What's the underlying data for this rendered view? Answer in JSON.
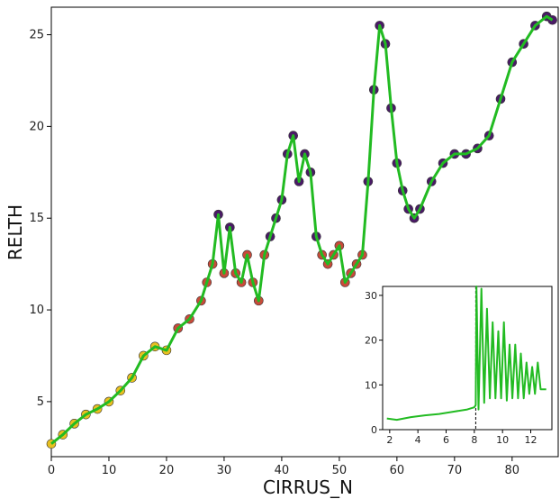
{
  "chart_data": [
    {
      "type": "scatter",
      "xlabel": "CIRRUS_N",
      "ylabel": "RELTH",
      "xlim": [
        0,
        88
      ],
      "ylim": [
        2,
        26.5
      ],
      "xticks": [
        0,
        10,
        20,
        30,
        40,
        50,
        60,
        70,
        80
      ],
      "yticks": [
        5,
        10,
        15,
        20,
        25
      ],
      "grid": false,
      "legend": "none",
      "colors": {
        "line": "#22bb22",
        "marker_low": "#e8c020",
        "marker_mid": "#c84a3a",
        "marker_high": "#4a1a66"
      },
      "series": [
        {
          "x": [
            0,
            2,
            4,
            6,
            8,
            10,
            12,
            14,
            16,
            18,
            20,
            22,
            24,
            26,
            27,
            28,
            29,
            30,
            31,
            32,
            33,
            34,
            35,
            36,
            37,
            38,
            39,
            40,
            41,
            42,
            43,
            44,
            45,
            46,
            47,
            48,
            49,
            50,
            51,
            52,
            53,
            54,
            55,
            56,
            57,
            58,
            59,
            60,
            61,
            62,
            63,
            64,
            66,
            68,
            70,
            72,
            74,
            76,
            78,
            80,
            82,
            84,
            86,
            87
          ],
          "y": [
            2.7,
            3.2,
            3.8,
            4.3,
            4.6,
            5.0,
            5.6,
            6.3,
            7.5,
            8.0,
            7.8,
            9.0,
            9.5,
            10.5,
            11.5,
            12.5,
            15.2,
            12.0,
            14.5,
            12.0,
            11.5,
            13.0,
            11.5,
            10.5,
            13.0,
            14.0,
            15.0,
            16.0,
            18.5,
            19.5,
            17.0,
            18.5,
            17.5,
            14.0,
            13.0,
            12.5,
            13.0,
            13.5,
            11.5,
            12.0,
            12.5,
            13.0,
            17.0,
            22.0,
            25.5,
            24.5,
            21.0,
            18.0,
            16.5,
            15.5,
            15.0,
            15.5,
            17.0,
            18.0,
            18.5,
            18.5,
            18.8,
            19.5,
            21.5,
            23.5,
            24.5,
            25.5,
            26.0,
            25.8
          ]
        }
      ]
    },
    {
      "type": "line",
      "xlim": [
        1.5,
        13.5
      ],
      "ylim": [
        0,
        32
      ],
      "xticks": [
        2,
        4,
        6,
        8,
        10,
        12
      ],
      "yticks": [
        0,
        10,
        20,
        30
      ],
      "vline_x": 8.1,
      "color": "#22bb22",
      "series": [
        {
          "x": [
            1.8,
            2.5,
            3.5,
            4.5,
            5.5,
            6.5,
            7.5,
            8.0,
            8.1,
            8.15,
            8.3,
            8.5,
            8.7,
            8.9,
            9.1,
            9.3,
            9.5,
            9.7,
            9.9,
            10.1,
            10.3,
            10.5,
            10.7,
            10.9,
            11.1,
            11.3,
            11.5,
            11.7,
            11.9,
            12.1,
            12.3,
            12.5,
            12.7,
            12.9,
            13.1
          ],
          "y": [
            2.5,
            2.2,
            2.8,
            3.2,
            3.5,
            4.0,
            4.5,
            5.0,
            5.5,
            32,
            4.5,
            31.5,
            6,
            27,
            7,
            24,
            7,
            22,
            7,
            24,
            6.5,
            19,
            7,
            19,
            7,
            17,
            7,
            15,
            8,
            14,
            8,
            15,
            9,
            9,
            9
          ]
        }
      ]
    }
  ]
}
